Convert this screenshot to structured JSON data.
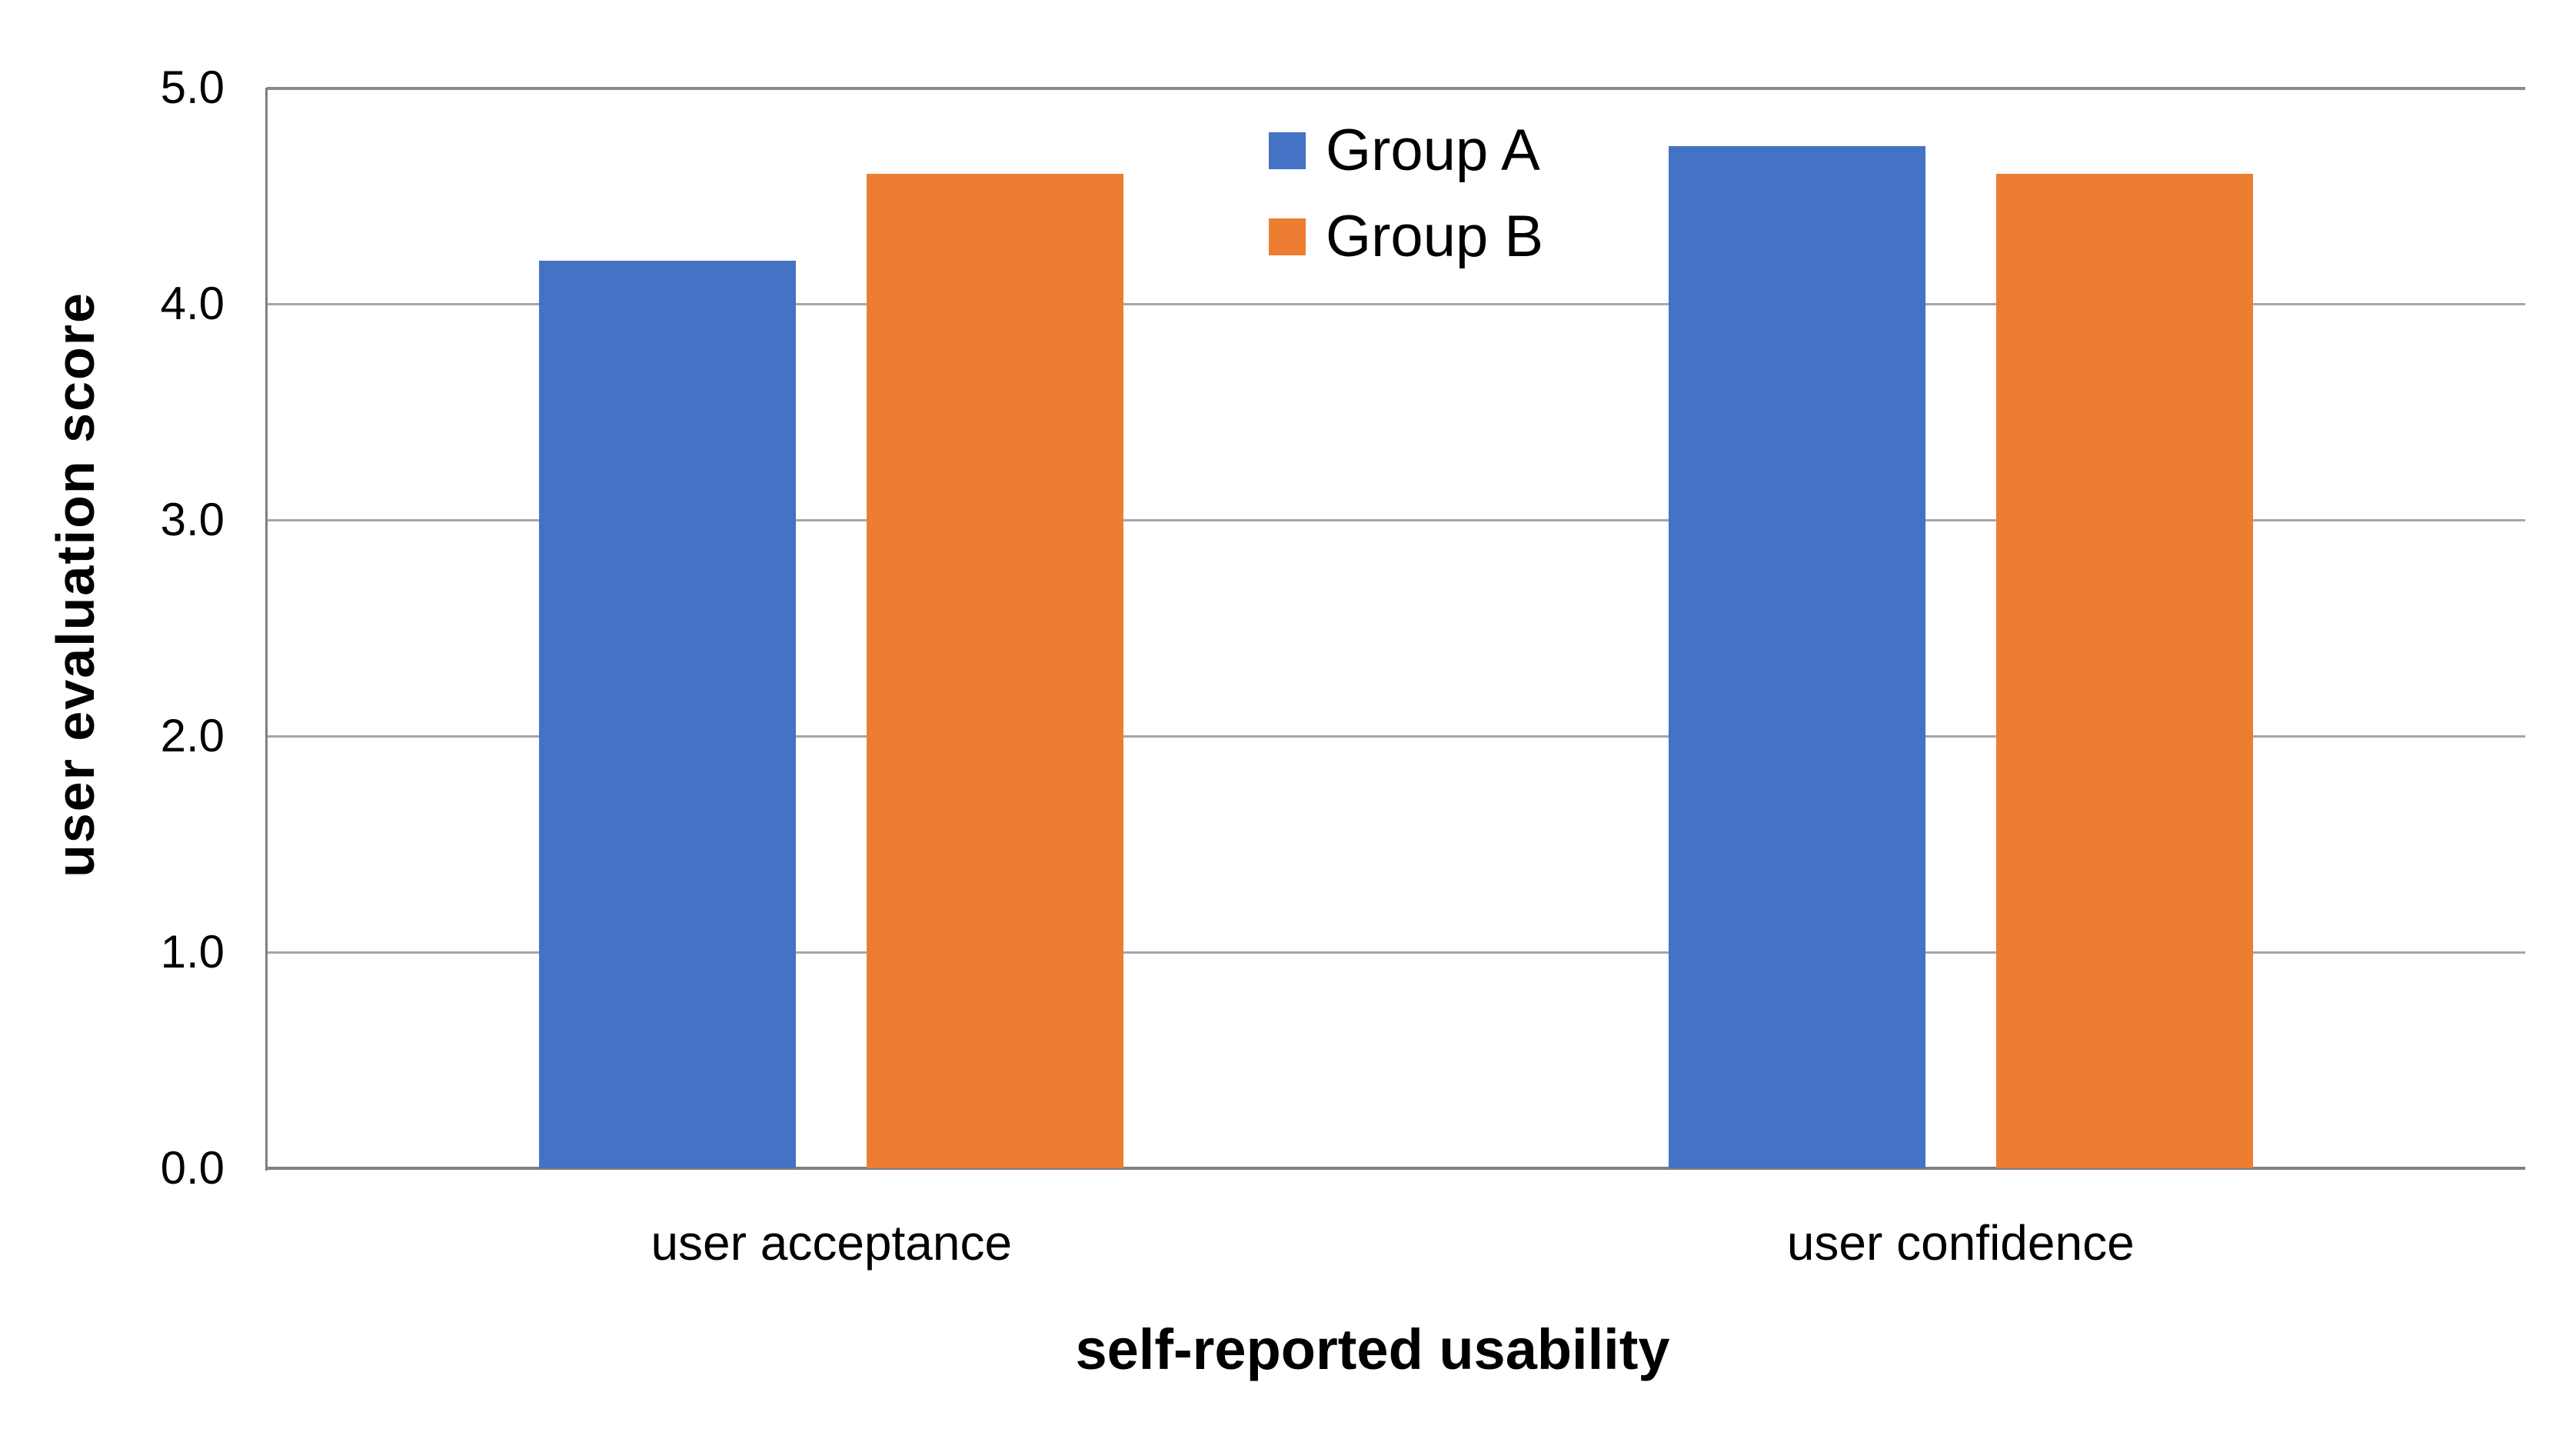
{
  "chart_data": {
    "type": "bar",
    "title": "",
    "categories": [
      "user acceptance",
      "user confidence"
    ],
    "series": [
      {
        "name": "Group A",
        "color": "#4472C4",
        "values": [
          4.2,
          4.73
        ]
      },
      {
        "name": "Group B",
        "color": "#ED7D31",
        "values": [
          4.6,
          4.6
        ]
      }
    ],
    "xlabel": "self-reported usability",
    "ylabel": "user evaluation score",
    "ylim": [
      0.0,
      5.0
    ],
    "ytick_step": 1.0,
    "ytick_labels": [
      "0.0",
      "1.0",
      "2.0",
      "3.0",
      "4.0",
      "5.0"
    ],
    "grid": true,
    "legend_position": "top-center-inside",
    "colors": {
      "series_a": "#4472C4",
      "series_b": "#ED7D31",
      "gridline": "#A6A6A6",
      "axis": "#7F7F7F",
      "text": "#000000",
      "background": "#FFFFFF"
    }
  }
}
